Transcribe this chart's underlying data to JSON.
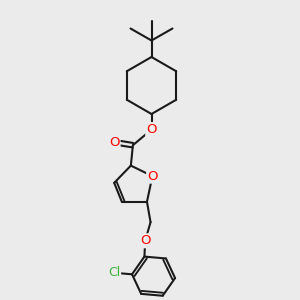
{
  "bg_color": "#ebebeb",
  "bond_color": "#1a1a1a",
  "oxygen_color": "#ff0000",
  "chlorine_color": "#3ab53a",
  "line_width": 1.5,
  "font_size_atom": 9.5,
  "fig_width": 3.0,
  "fig_height": 3.0,
  "dpi": 100,
  "xlim": [
    0,
    10
  ],
  "ylim": [
    0,
    10
  ]
}
